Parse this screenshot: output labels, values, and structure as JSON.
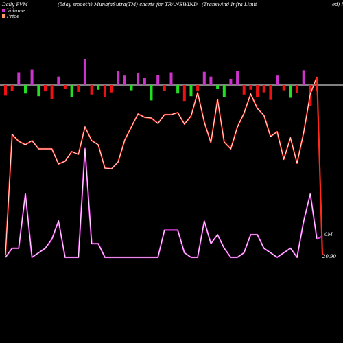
{
  "header": {
    "left": "Daily PVM",
    "center": "(5day smooth) MunafaSutra(TM) charts for TRANSWIND",
    "right_a": "(Transwind Infra  Limit",
    "right_b": "ed) M"
  },
  "legend": {
    "volume": "Volume",
    "price": "Price"
  },
  "labels": {
    "volume_mark": "0M",
    "price_mark": "20.90"
  },
  "colors": {
    "background": "#000000",
    "price_line": "#ff2a1a",
    "price_glow": "#ffffff",
    "volume_line": "#e040e0",
    "bar_up": "#cc33cc",
    "bar_down_red": "#ee1111",
    "bar_down_green": "#22dd22",
    "axis_line": "#ffffff"
  },
  "chart_data": {
    "type": "line",
    "series": [
      {
        "key": "price",
        "values": [
          4,
          179,
          169,
          164,
          170,
          158,
          158,
          158,
          136,
          140,
          154,
          150,
          190,
          170,
          164,
          130,
          129,
          139,
          171,
          190,
          209,
          204,
          203,
          195,
          208,
          208,
          211,
          194,
          206,
          240,
          197,
          167,
          230,
          168,
          158,
          190,
          210,
          238,
          217,
          207,
          176,
          183,
          143,
          174,
          137,
          182,
          238,
          263
        ]
      },
      {
        "key": "volume",
        "values": [
          0,
          2,
          2,
          14,
          0,
          1,
          2,
          4,
          8,
          0,
          0,
          0,
          24,
          3,
          3,
          0,
          0,
          0,
          0,
          0,
          0,
          0,
          0,
          0,
          6,
          6,
          6,
          1,
          0,
          0,
          8,
          3,
          5,
          2,
          0,
          0,
          1,
          5,
          5,
          2,
          1,
          0,
          1,
          2,
          0,
          8,
          14,
          4
        ]
      },
      {
        "key": "pvm_bars",
        "values": [
          1,
          1,
          0,
          2,
          0,
          2,
          1,
          1,
          0,
          1,
          2,
          1,
          0,
          1,
          2,
          1,
          1,
          0,
          0,
          2,
          0,
          0,
          2,
          0,
          1,
          0,
          2,
          1,
          2,
          1,
          0,
          0,
          2,
          2,
          0,
          0,
          1,
          1,
          1,
          1,
          1,
          0,
          1,
          2,
          1,
          0,
          1,
          1
        ]
      }
    ]
  }
}
